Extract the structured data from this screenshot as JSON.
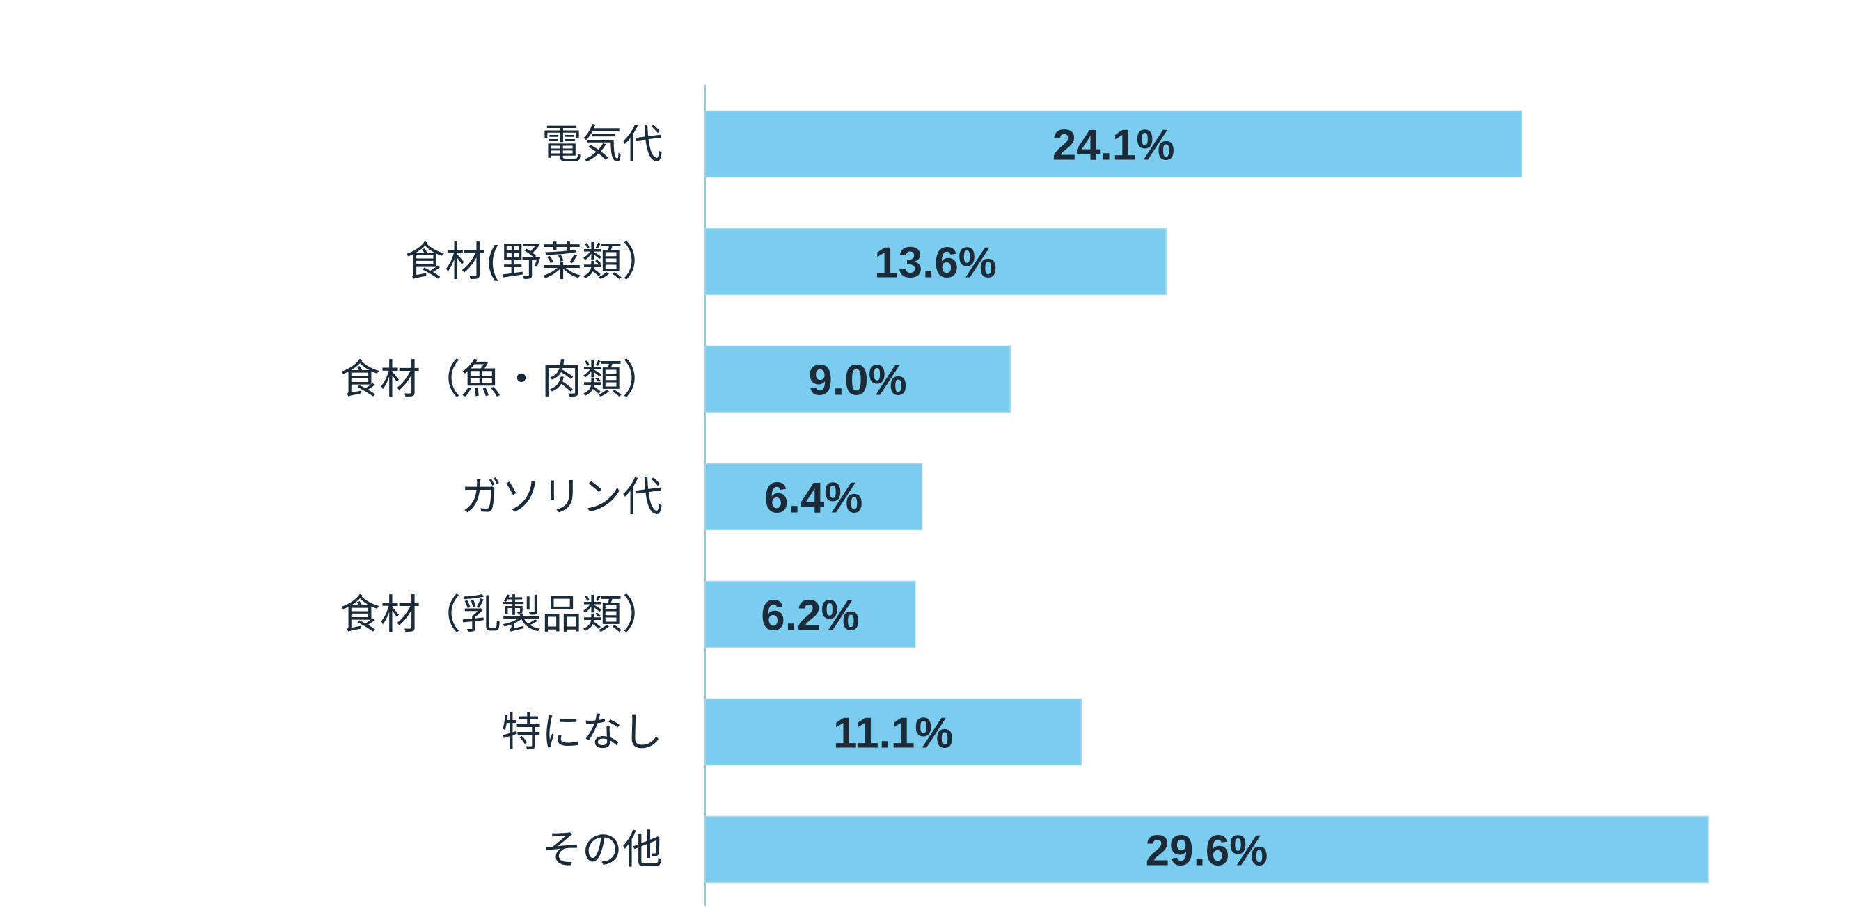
{
  "chart_data": {
    "type": "bar",
    "orientation": "horizontal",
    "categories": [
      "電気代",
      "食材(野菜類）",
      "食材（魚・肉類）",
      "ガソリン代",
      "食材（乳製品類）",
      "特になし",
      "その他"
    ],
    "values": [
      24.1,
      13.6,
      9.0,
      6.4,
      6.2,
      11.1,
      29.6
    ],
    "value_labels": [
      "24.1%",
      "13.6%",
      "9.0%",
      "6.4%",
      "6.2%",
      "11.1%",
      "29.6%"
    ],
    "unit": "%",
    "title": "",
    "xlabel": "",
    "ylabel": "",
    "xlim": [
      0,
      29.6
    ],
    "grid": false,
    "legend": "none",
    "bar_color": "#7bcdef",
    "bar_edge_color": "#a9d6ea",
    "axis_color": "#9cc3d8",
    "text_color": "#1c2b3a"
  }
}
